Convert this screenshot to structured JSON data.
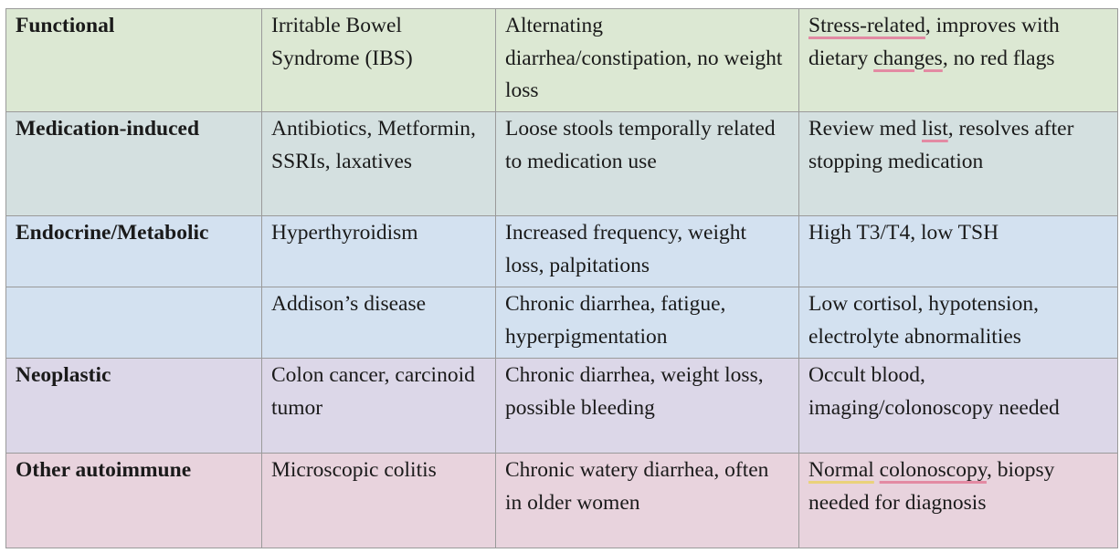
{
  "rows": [
    {
      "category": "Functional",
      "condition": "Irritable Bowel Syndrome (IBS)",
      "features": "Alternating diarrhea/constipation, no weight loss",
      "notes": {
        "a": "Stress-related",
        "b": ", improves with dietary ",
        "c": "changes",
        "d": ", no red flags"
      }
    },
    {
      "category": "Medication-induced",
      "condition": "Antibiotics, Metformin, SSRIs, laxatives",
      "features": "Loose stools temporally related to medication use",
      "notes": {
        "a": "Review med ",
        "b": "list",
        "c": ", resolves after stopping medication"
      }
    },
    {
      "category": "Endocrine/Metabolic",
      "condition": "Hyperthyroidism",
      "features": "Increased frequency, weight loss, palpitations",
      "notes": "High T3/T4, low TSH"
    },
    {
      "category": "",
      "condition": "Addison’s disease",
      "features": "Chronic diarrhea, fatigue, hyperpigmentation",
      "notes": "Low cortisol, hypotension, electrolyte abnormalities"
    },
    {
      "category": "Neoplastic",
      "condition": "Colon cancer, carcinoid tumor",
      "features": "Chronic diarrhea, weight loss, possible bleeding",
      "notes": "Occult blood, imaging/colonoscopy needed"
    },
    {
      "category": "Other autoimmune",
      "condition": "Microscopic colitis",
      "features": "Chronic watery diarrhea, often in older women",
      "notes": {
        "a": "Normal",
        "b": " ",
        "c": "colonoscopy",
        "d": ", biopsy needed for diagnosis"
      }
    }
  ],
  "colors": {
    "functional": "#dce8d3",
    "medication": "#d4e0e0",
    "endocrine": "#d3e1f0",
    "neoplastic": "#dcd7e8",
    "autoimmune": "#e8d3dd",
    "spellcheck_red": "#e38aa3",
    "grammar_yellow": "#ead27a"
  }
}
